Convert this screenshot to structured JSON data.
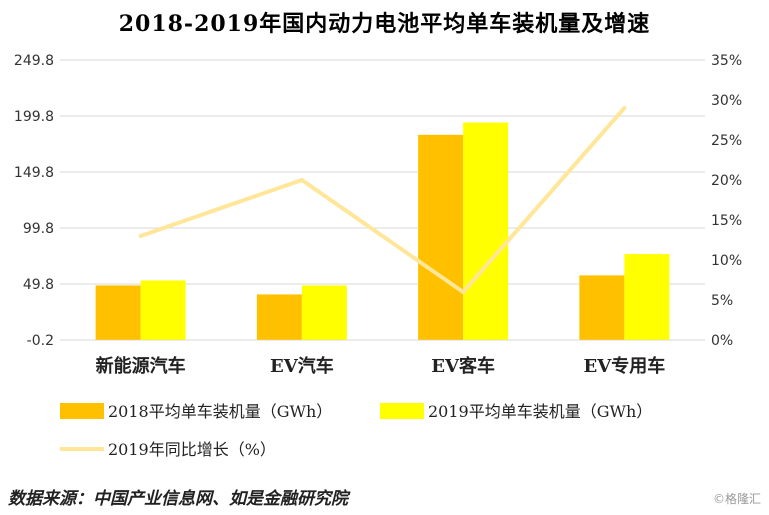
{
  "title": "2018-2019年国内动力电池平均单车装机量及增速",
  "source": "数据来源：中国产业信息网、如是金融研究院",
  "watermark": "©格隆汇",
  "chart_data": {
    "type": "bar",
    "categories": [
      "新能源汽车",
      "EV汽车",
      "EV客车",
      "EV专用车"
    ],
    "series": [
      {
        "name": "2018平均单车装机量（GWh）",
        "kind": "bar",
        "axis": "left",
        "color": "#FFC000",
        "values": [
          48.5,
          40.5,
          183,
          57.5
        ]
      },
      {
        "name": "2019平均单车装机量（GWh）",
        "kind": "bar",
        "axis": "left",
        "color": "#FFFF00",
        "values": [
          53,
          48.5,
          194,
          76.5
        ]
      },
      {
        "name": "2019年同比增长（%）",
        "kind": "line",
        "axis": "right",
        "color": "#FFE699",
        "values": [
          13,
          20,
          6,
          29
        ]
      }
    ],
    "left_axis": {
      "ticks": [
        "-0.2",
        "49.8",
        "99.8",
        "149.8",
        "199.8",
        "249.8"
      ],
      "min": -0.2,
      "max": 249.8
    },
    "right_axis": {
      "ticks": [
        "0%",
        "5%",
        "10%",
        "15%",
        "20%",
        "25%",
        "30%",
        "35%"
      ],
      "min": 0,
      "max": 35
    },
    "grid": true
  }
}
